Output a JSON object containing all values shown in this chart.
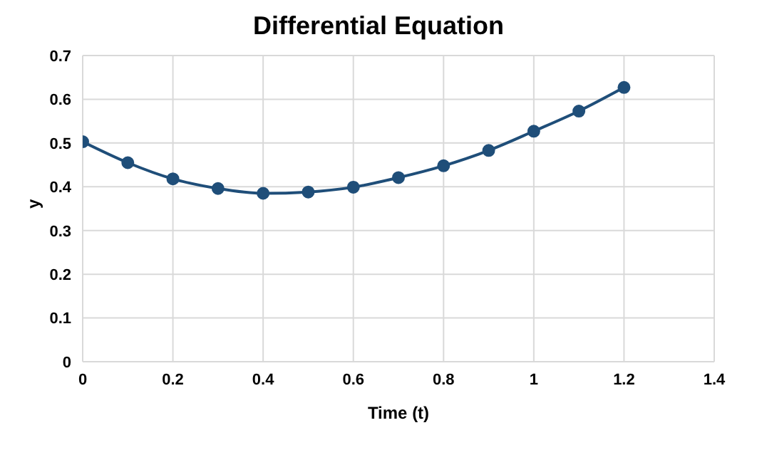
{
  "chart_data": {
    "type": "line",
    "title": "Differential Equation",
    "xlabel": "Time (t)",
    "ylabel": "y",
    "x": [
      0,
      0.1,
      0.2,
      0.3,
      0.4,
      0.5,
      0.6,
      0.7,
      0.8,
      0.9,
      1,
      1.1,
      1.2
    ],
    "series": [
      {
        "color": "#1f4e79",
        "values": [
          0.503,
          0.455,
          0.418,
          0.396,
          0.385,
          0.388,
          0.399,
          0.421,
          0.448,
          0.483,
          0.527,
          0.573,
          0.627
        ]
      }
    ],
    "xlim": [
      0,
      1.4
    ],
    "xticks": [
      0,
      0.2,
      0.4,
      0.6,
      0.8,
      1,
      1.2,
      1.4
    ],
    "ylim": [
      0,
      0.7
    ],
    "yticks": [
      0,
      0.1,
      0.2,
      0.3,
      0.4,
      0.5,
      0.6,
      0.7
    ],
    "grid": true,
    "marker": "circle",
    "line_style": "solid",
    "legend": false
  }
}
